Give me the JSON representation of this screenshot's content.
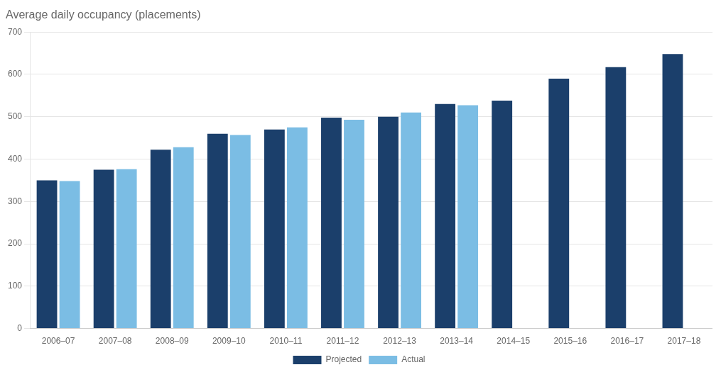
{
  "chart_data": {
    "type": "bar",
    "title": "Average daily occupancy (placements)",
    "categories": [
      "2006–07",
      "2007–08",
      "2008–09",
      "2009–10",
      "2010–11",
      "2011–12",
      "2012–13",
      "2013–14",
      "2014–15",
      "2015–16",
      "2016–17",
      "2017–18"
    ],
    "series": [
      {
        "name": "Projected",
        "color": "#1b3f6b",
        "values": [
          350,
          375,
          422,
          460,
          470,
          498,
          500,
          530,
          538,
          590,
          617,
          648
        ]
      },
      {
        "name": "Actual",
        "color": "#7bbde4",
        "values": [
          348,
          376,
          428,
          457,
          475,
          493,
          510,
          527,
          null,
          null,
          null,
          null
        ]
      }
    ],
    "ylim": [
      0,
      700
    ],
    "yticks": [
      0,
      100,
      200,
      300,
      400,
      500,
      600,
      700
    ],
    "grid": true,
    "legend": "bottom"
  }
}
